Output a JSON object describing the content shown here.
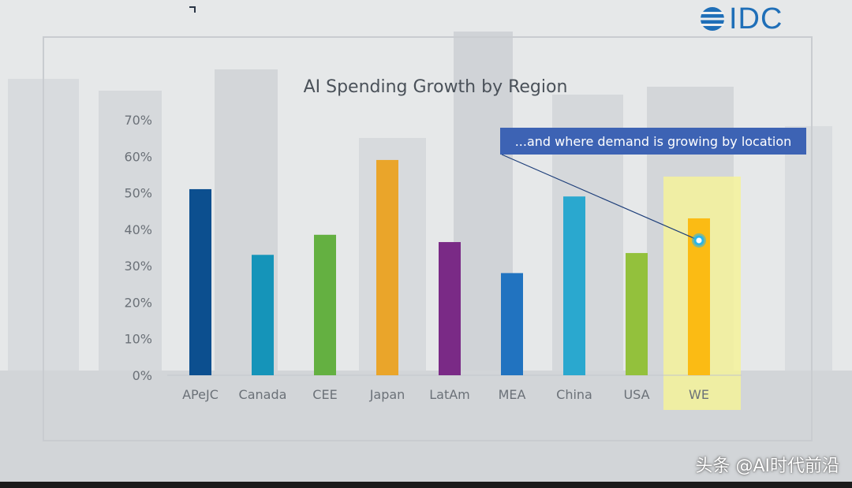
{
  "logo": {
    "text": "IDC"
  },
  "callout": {
    "text": "...and where demand is growing by location"
  },
  "watermark": {
    "text": "头条 @AI时代前沿"
  },
  "colors": {
    "axis_text": "#6b7178",
    "highlight": "#f4f29a",
    "callout_bg": "#3d63b4",
    "pointer": "#1e3f7a",
    "marker": "#29b5ea"
  },
  "chart_data": {
    "type": "bar",
    "title": "AI Spending Growth by Region",
    "xlabel": "",
    "ylabel": "",
    "ylim": [
      0,
      70
    ],
    "yticks": [
      "0%",
      "10%",
      "20%",
      "30%",
      "40%",
      "50%",
      "60%",
      "70%"
    ],
    "categories": [
      "APeJC",
      "Canada",
      "CEE",
      "Japan",
      "LatAm",
      "MEA",
      "China",
      "USA",
      "WE"
    ],
    "values": [
      51,
      33,
      38.5,
      59,
      36.5,
      28,
      49,
      33.5,
      43
    ],
    "bar_colors": [
      "#0c4f8f",
      "#1594b9",
      "#64b041",
      "#eaa52a",
      "#7a2a86",
      "#2173c0",
      "#2aa8cf",
      "#93c13c",
      "#fbbb14"
    ],
    "grid": false,
    "highlight_category": "WE"
  }
}
